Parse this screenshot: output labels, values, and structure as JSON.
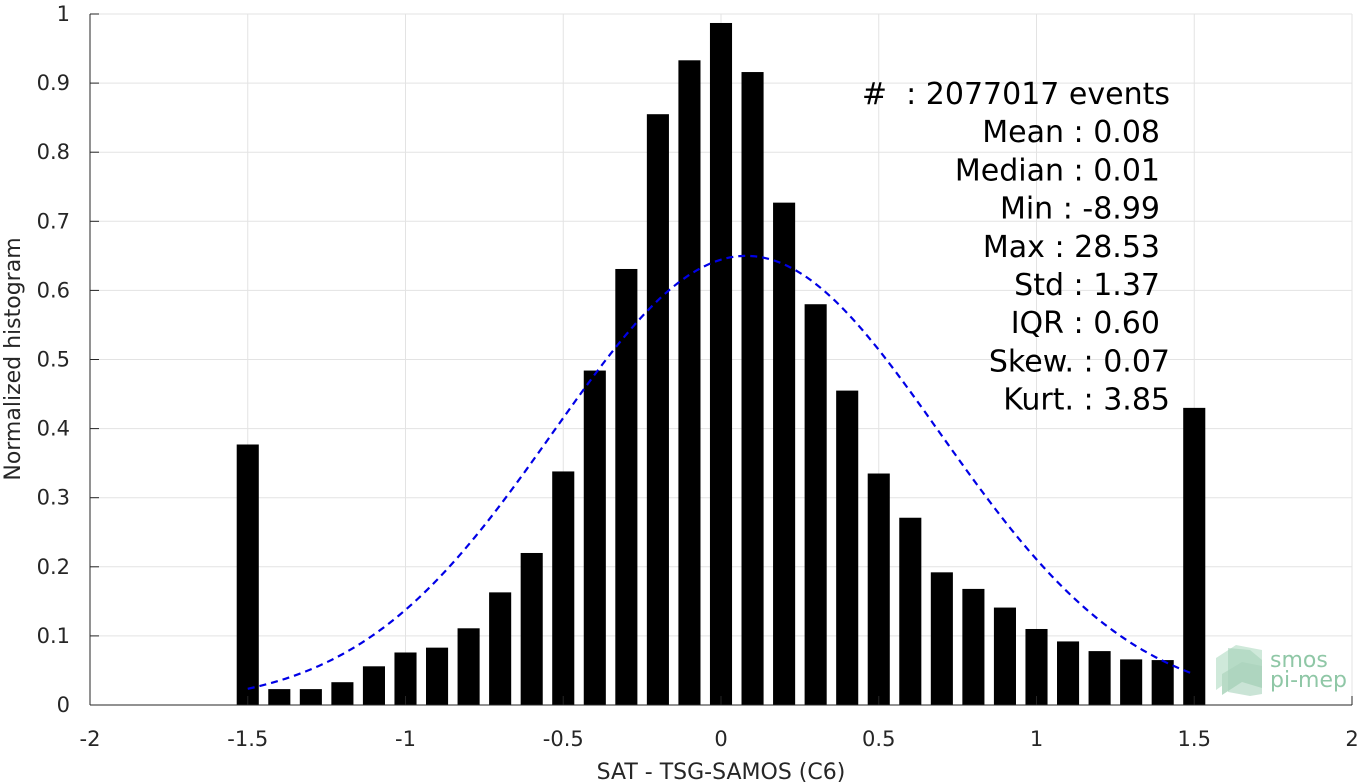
{
  "chart_data": {
    "type": "bar",
    "xlabel": "SAT - TSG-SAMOS (C6)",
    "ylabel": "Normalized histogram",
    "xlim": [
      -2,
      2
    ],
    "ylim": [
      0,
      1
    ],
    "grid": true,
    "xticks": [
      -2,
      -1.5,
      -1,
      -0.5,
      0,
      0.5,
      1,
      1.5,
      2
    ],
    "xtick_labels": [
      "-2",
      "-1.5",
      "-1",
      "-0.5",
      "0",
      "0.5",
      "1",
      "1.5",
      "2"
    ],
    "yticks": [
      0,
      0.1,
      0.2,
      0.3,
      0.4,
      0.5,
      0.6,
      0.7,
      0.8,
      0.9,
      1
    ],
    "ytick_labels": [
      "0",
      "0.1",
      "0.2",
      "0.3",
      "0.4",
      "0.5",
      "0.6",
      "0.7",
      "0.8",
      "0.9",
      "1"
    ],
    "bar_width": 0.07,
    "x": [
      -1.5,
      -1.4,
      -1.3,
      -1.2,
      -1.1,
      -1.0,
      -0.9,
      -0.8,
      -0.7,
      -0.6,
      -0.5,
      -0.4,
      -0.3,
      -0.2,
      -0.1,
      0.0,
      0.1,
      0.2,
      0.3,
      0.4,
      0.5,
      0.6,
      0.7,
      0.8,
      0.9,
      1.0,
      1.1,
      1.2,
      1.3,
      1.4,
      1.5
    ],
    "values": [
      0.377,
      0.023,
      0.023,
      0.033,
      0.056,
      0.076,
      0.083,
      0.111,
      0.163,
      0.22,
      0.338,
      0.484,
      0.631,
      0.855,
      0.933,
      0.987,
      0.916,
      0.727,
      0.58,
      0.455,
      0.335,
      0.271,
      0.192,
      0.168,
      0.141,
      0.11,
      0.092,
      0.078,
      0.066,
      0.065,
      0.43
    ],
    "bar_color": "#000000",
    "fit_curve": {
      "style": "dashed",
      "color": "#0000e6",
      "mean": 0.08,
      "std": 0.613,
      "peak": 0.65,
      "x_range": [
        -1.5,
        1.5
      ]
    },
    "stats": [
      "#  : 2077017 events",
      "Mean : 0.08",
      "Median : 0.01",
      "Min : -8.99",
      "Max : 28.53",
      "Std : 1.37",
      "IQR : 0.60",
      "Skew. : 0.07",
      "Kurt. : 3.85"
    ],
    "logo": {
      "line1": "smos",
      "line2": "pi-mep",
      "color": "#8fc7a6"
    }
  }
}
